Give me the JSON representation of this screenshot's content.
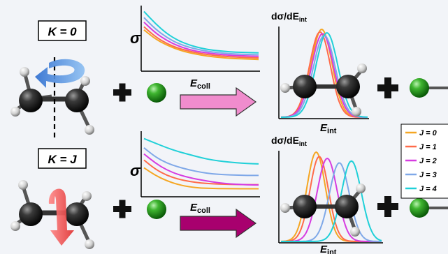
{
  "top_row": {
    "k_label": "K = 0",
    "sigma_label": "σ",
    "ecoll_label_main": "E",
    "ecoll_label_sub": "coll",
    "dsigma_label_main": "dσ/dE",
    "dsigma_label_sub": "int",
    "eint_label_main": "E",
    "eint_label_sub": "int",
    "arrow_color": "#f08ccd"
  },
  "bottom_row": {
    "k_label": "K = J",
    "sigma_label": "σ",
    "ecoll_label_main": "E",
    "ecoll_label_sub": "coll",
    "dsigma_label_main": "dσ/dE",
    "dsigma_label_sub": "int",
    "eint_label_main": "E",
    "eint_label_sub": "int",
    "arrow_color": "#a8006e"
  },
  "legend": {
    "entries": [
      {
        "label": "J = 0",
        "color": "#f5a623"
      },
      {
        "label": "J = 1",
        "color": "#ff6b4a"
      },
      {
        "label": "J = 2",
        "color": "#d63ce0"
      },
      {
        "label": "J = 3",
        "color": "#7fa8e8"
      },
      {
        "label": "J = 4",
        "color": "#20d0d8"
      }
    ]
  },
  "icons": {
    "rotation_top": "blue-rotation-arrow-icon",
    "rotation_bottom": "red-rotation-arrow-icon",
    "plus": "plus-icon",
    "atom": "chlorine-atom-icon"
  },
  "chart_data": [
    {
      "type": "line",
      "panel": "top-sigma",
      "xlabel": "Ecoll",
      "ylabel": "σ",
      "x": [
        0,
        1,
        2,
        3,
        4,
        5,
        6,
        7,
        8,
        9,
        10
      ],
      "series": [
        {
          "name": "J = 0",
          "values": [
            5.2,
            4.0,
            3.2,
            2.6,
            2.2,
            1.9,
            1.7,
            1.55,
            1.45,
            1.4,
            1.35
          ]
        },
        {
          "name": "J = 1",
          "values": [
            5.6,
            4.3,
            3.4,
            2.8,
            2.4,
            2.1,
            1.9,
            1.75,
            1.65,
            1.6,
            1.55
          ]
        },
        {
          "name": "J = 2",
          "values": [
            6.2,
            4.8,
            3.8,
            3.1,
            2.6,
            2.3,
            2.1,
            1.95,
            1.85,
            1.8,
            1.75
          ]
        },
        {
          "name": "J = 3",
          "values": [
            6.8,
            5.3,
            4.2,
            3.4,
            2.9,
            2.55,
            2.3,
            2.15,
            2.05,
            2.0,
            1.95
          ]
        },
        {
          "name": "J = 4",
          "values": [
            7.6,
            6.0,
            4.7,
            3.8,
            3.2,
            2.8,
            2.55,
            2.4,
            2.3,
            2.25,
            2.2
          ]
        }
      ]
    },
    {
      "type": "line",
      "panel": "bottom-sigma",
      "xlabel": "Ecoll",
      "ylabel": "σ",
      "x": [
        0,
        1,
        2,
        3,
        4,
        5,
        6,
        7,
        8,
        9,
        10
      ],
      "series": [
        {
          "name": "J = 0",
          "values": [
            3.6,
            2.6,
            1.9,
            1.4,
            1.1,
            0.95,
            0.9,
            0.88,
            0.87,
            0.86,
            0.86
          ]
        },
        {
          "name": "J = 1",
          "values": [
            4.6,
            3.4,
            2.6,
            2.1,
            1.8,
            1.6,
            1.5,
            1.45,
            1.42,
            1.4,
            1.4
          ]
        },
        {
          "name": "J = 2",
          "values": [
            5.4,
            4.2,
            3.3,
            2.7,
            2.3,
            2.0,
            1.75,
            1.55,
            1.45,
            1.38,
            1.35
          ]
        },
        {
          "name": "J = 3",
          "values": [
            6.2,
            5.0,
            4.2,
            3.7,
            3.3,
            3.0,
            2.8,
            2.7,
            2.65,
            2.6,
            2.6
          ]
        },
        {
          "name": "J = 4",
          "values": [
            7.4,
            6.8,
            6.2,
            5.7,
            5.3,
            4.9,
            4.6,
            4.4,
            4.25,
            4.15,
            4.1
          ]
        }
      ]
    },
    {
      "type": "line",
      "panel": "top-distribution",
      "xlabel": "Eint",
      "ylabel": "dσ/dEint",
      "series": [
        {
          "name": "J = 0",
          "center": 0.47,
          "width": 0.17,
          "height": 1.0
        },
        {
          "name": "J = 1",
          "center": 0.45,
          "width": 0.17,
          "height": 0.97
        },
        {
          "name": "J = 2",
          "center": 0.48,
          "width": 0.18,
          "height": 0.95
        },
        {
          "name": "J = 3",
          "center": 0.5,
          "width": 0.18,
          "height": 0.93
        },
        {
          "name": "J = 4",
          "center": 0.53,
          "width": 0.18,
          "height": 0.96
        }
      ]
    },
    {
      "type": "line",
      "panel": "bottom-distribution",
      "xlabel": "Eint",
      "ylabel": "dσ/dEint",
      "series": [
        {
          "name": "J = 0",
          "center": 0.35,
          "width": 0.13,
          "height": 1.0
        },
        {
          "name": "J = 1",
          "center": 0.38,
          "width": 0.13,
          "height": 0.95
        },
        {
          "name": "J = 2",
          "center": 0.46,
          "width": 0.14,
          "height": 0.93
        },
        {
          "name": "J = 3",
          "center": 0.58,
          "width": 0.14,
          "height": 0.88
        },
        {
          "name": "J = 4",
          "center": 0.7,
          "width": 0.14,
          "height": 0.9
        }
      ]
    }
  ]
}
